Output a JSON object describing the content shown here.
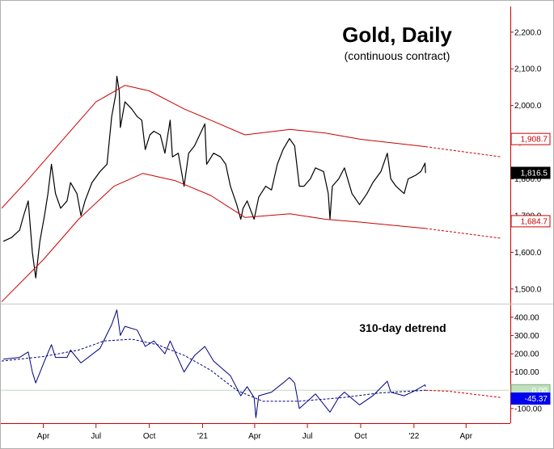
{
  "chart_data": [
    {
      "type": "line",
      "title": "Gold, Daily",
      "subtitle": "(continuous contract)",
      "x_tick_labels": [
        "Apr",
        "Jul",
        "Oct",
        "'21",
        "Apr",
        "Jul",
        "Oct",
        "'22",
        "Apr"
      ],
      "x_tick_dates": [
        "2020-04-01",
        "2020-07-01",
        "2020-10-01",
        "2021-01-01",
        "2021-04-01",
        "2021-07-01",
        "2021-10-01",
        "2022-01-01",
        "2022-04-01"
      ],
      "x_range": [
        "2020-01-20",
        "2022-06-15"
      ],
      "y_axis_position": "right",
      "ylim": [
        1460,
        2270
      ],
      "y_ticks": [
        1500,
        1600,
        1700,
        1800,
        1900,
        2000,
        2100,
        2200
      ],
      "y_tick_labels": [
        "1,500.0",
        "1,600.0",
        "1,700.0",
        "1,800.0",
        "1,900.0",
        "2,000.0",
        "2,100.0",
        "2,200.0"
      ],
      "series": [
        {
          "role": "price",
          "color": "#000000",
          "points": [
            [
              "2020-01-23",
              1630
            ],
            [
              "2020-02-06",
              1640
            ],
            [
              "2020-02-20",
              1660
            ],
            [
              "2020-02-27",
              1700
            ],
            [
              "2020-03-06",
              1740
            ],
            [
              "2020-03-13",
              1600
            ],
            [
              "2020-03-19",
              1530
            ],
            [
              "2020-03-26",
              1630
            ],
            [
              "2020-04-03",
              1700
            ],
            [
              "2020-04-09",
              1760
            ],
            [
              "2020-04-15",
              1840
            ],
            [
              "2020-04-22",
              1760
            ],
            [
              "2020-05-01",
              1720
            ],
            [
              "2020-05-12",
              1740
            ],
            [
              "2020-05-18",
              1790
            ],
            [
              "2020-05-29",
              1760
            ],
            [
              "2020-06-05",
              1700
            ],
            [
              "2020-06-12",
              1740
            ],
            [
              "2020-06-24",
              1790
            ],
            [
              "2020-07-08",
              1820
            ],
            [
              "2020-07-20",
              1840
            ],
            [
              "2020-07-28",
              1970
            ],
            [
              "2020-08-04",
              2030
            ],
            [
              "2020-08-06",
              2080
            ],
            [
              "2020-08-10",
              2040
            ],
            [
              "2020-08-12",
              1940
            ],
            [
              "2020-08-20",
              2010
            ],
            [
              "2020-09-01",
              1990
            ],
            [
              "2020-09-10",
              1970
            ],
            [
              "2020-09-18",
              1960
            ],
            [
              "2020-09-24",
              1880
            ],
            [
              "2020-10-02",
              1920
            ],
            [
              "2020-10-09",
              1930
            ],
            [
              "2020-10-20",
              1920
            ],
            [
              "2020-10-28",
              1870
            ],
            [
              "2020-11-06",
              1960
            ],
            [
              "2020-11-10",
              1860
            ],
            [
              "2020-11-20",
              1870
            ],
            [
              "2020-11-30",
              1780
            ],
            [
              "2020-12-08",
              1870
            ],
            [
              "2020-12-18",
              1890
            ],
            [
              "2021-01-05",
              1950
            ],
            [
              "2021-01-08",
              1840
            ],
            [
              "2021-01-20",
              1870
            ],
            [
              "2021-02-01",
              1860
            ],
            [
              "2021-02-10",
              1840
            ],
            [
              "2021-02-18",
              1780
            ],
            [
              "2021-03-01",
              1730
            ],
            [
              "2021-03-08",
              1690
            ],
            [
              "2021-03-12",
              1720
            ],
            [
              "2021-03-19",
              1740
            ],
            [
              "2021-03-31",
              1690
            ],
            [
              "2021-04-08",
              1750
            ],
            [
              "2021-04-20",
              1780
            ],
            [
              "2021-04-30",
              1770
            ],
            [
              "2021-05-10",
              1840
            ],
            [
              "2021-05-20",
              1880
            ],
            [
              "2021-05-31",
              1910
            ],
            [
              "2021-06-09",
              1890
            ],
            [
              "2021-06-17",
              1780
            ],
            [
              "2021-06-25",
              1780
            ],
            [
              "2021-07-06",
              1800
            ],
            [
              "2021-07-15",
              1830
            ],
            [
              "2021-07-29",
              1820
            ],
            [
              "2021-08-06",
              1760
            ],
            [
              "2021-08-09",
              1690
            ],
            [
              "2021-08-13",
              1780
            ],
            [
              "2021-08-24",
              1800
            ],
            [
              "2021-09-03",
              1830
            ],
            [
              "2021-09-16",
              1760
            ],
            [
              "2021-09-29",
              1730
            ],
            [
              "2021-10-12",
              1760
            ],
            [
              "2021-10-22",
              1790
            ],
            [
              "2021-11-05",
              1820
            ],
            [
              "2021-11-16",
              1870
            ],
            [
              "2021-11-22",
              1800
            ],
            [
              "2021-12-01",
              1780
            ],
            [
              "2021-12-15",
              1760
            ],
            [
              "2021-12-22",
              1800
            ],
            [
              "2022-01-04",
              1810
            ],
            [
              "2022-01-13",
              1820
            ],
            [
              "2022-01-20",
              1843
            ],
            [
              "2022-01-21",
              1816
            ]
          ]
        },
        {
          "role": "upper channel",
          "color": "#cc0000",
          "points": [
            [
              "2020-01-20",
              1720
            ],
            [
              "2020-03-01",
              1790
            ],
            [
              "2020-05-01",
              1900
            ],
            [
              "2020-07-01",
              2010
            ],
            [
              "2020-08-20",
              2055
            ],
            [
              "2020-10-01",
              2040
            ],
            [
              "2020-12-01",
              1990
            ],
            [
              "2021-01-15",
              1960
            ],
            [
              "2021-03-15",
              1920
            ],
            [
              "2021-06-01",
              1935
            ],
            [
              "2021-08-01",
              1925
            ],
            [
              "2021-10-01",
              1908
            ],
            [
              "2022-01-21",
              1888
            ]
          ],
          "projection": [
            [
              "2022-01-21",
              1888
            ],
            [
              "2022-06-01",
              1860
            ]
          ]
        },
        {
          "role": "lower channel",
          "color": "#cc0000",
          "points": [
            [
              "2020-01-20",
              1465
            ],
            [
              "2020-04-01",
              1580
            ],
            [
              "2020-06-01",
              1690
            ],
            [
              "2020-08-01",
              1780
            ],
            [
              "2020-09-20",
              1815
            ],
            [
              "2020-11-15",
              1795
            ],
            [
              "2021-01-15",
              1755
            ],
            [
              "2021-03-15",
              1695
            ],
            [
              "2021-06-01",
              1705
            ],
            [
              "2021-08-01",
              1690
            ],
            [
              "2021-10-01",
              1682
            ],
            [
              "2022-01-21",
              1665
            ]
          ],
          "projection": [
            [
              "2022-01-21",
              1665
            ],
            [
              "2022-06-01",
              1638
            ]
          ]
        }
      ],
      "flags": [
        {
          "value": "1,908.7",
          "background": "#ffffff",
          "border": "#cc0000",
          "text_color": "#cc0000",
          "y": 1908.7
        },
        {
          "value": "1,816.5",
          "background": "#000000",
          "border": "#000000",
          "text_color": "#ffffff",
          "y": 1816.5
        },
        {
          "value": "1,684.7",
          "background": "#ffffff",
          "border": "#cc0000",
          "text_color": "#cc0000",
          "y": 1684.7
        }
      ]
    },
    {
      "type": "line",
      "title": "310-day detrend",
      "y_axis_position": "right",
      "ylim": [
        -180,
        470
      ],
      "y_ticks": [
        400,
        300,
        200,
        100,
        -100
      ],
      "y_tick_labels": [
        "400.00",
        "300.00",
        "200.00",
        "100.00",
        "-100.00"
      ],
      "series": [
        {
          "role": "detrend",
          "color": "#000080",
          "points": [
            [
              "2020-01-23",
              170
            ],
            [
              "2020-02-20",
              180
            ],
            [
              "2020-03-06",
              210
            ],
            [
              "2020-03-13",
              100
            ],
            [
              "2020-03-19",
              40
            ],
            [
              "2020-04-03",
              160
            ],
            [
              "2020-04-15",
              250
            ],
            [
              "2020-04-22",
              180
            ],
            [
              "2020-05-12",
              180
            ],
            [
              "2020-05-18",
              220
            ],
            [
              "2020-06-05",
              150
            ],
            [
              "2020-07-08",
              230
            ],
            [
              "2020-07-28",
              360
            ],
            [
              "2020-08-06",
              440
            ],
            [
              "2020-08-12",
              300
            ],
            [
              "2020-08-20",
              350
            ],
            [
              "2020-09-10",
              330
            ],
            [
              "2020-09-24",
              240
            ],
            [
              "2020-10-09",
              270
            ],
            [
              "2020-10-28",
              200
            ],
            [
              "2020-11-06",
              270
            ],
            [
              "2020-11-30",
              100
            ],
            [
              "2020-12-18",
              190
            ],
            [
              "2021-01-05",
              240
            ],
            [
              "2021-01-20",
              160
            ],
            [
              "2021-02-18",
              80
            ],
            [
              "2021-03-08",
              -30
            ],
            [
              "2021-03-19",
              20
            ],
            [
              "2021-03-31",
              -40
            ],
            [
              "2021-04-03",
              -150
            ],
            [
              "2021-04-08",
              -30
            ],
            [
              "2021-04-30",
              -10
            ],
            [
              "2021-05-20",
              40
            ],
            [
              "2021-05-31",
              70
            ],
            [
              "2021-06-09",
              40
            ],
            [
              "2021-06-17",
              -100
            ],
            [
              "2021-07-15",
              -20
            ],
            [
              "2021-08-09",
              -120
            ],
            [
              "2021-08-24",
              -40
            ],
            [
              "2021-09-03",
              -10
            ],
            [
              "2021-09-29",
              -80
            ],
            [
              "2021-10-22",
              -30
            ],
            [
              "2021-11-16",
              50
            ],
            [
              "2021-11-22",
              -10
            ],
            [
              "2021-12-15",
              -30
            ],
            [
              "2022-01-04",
              0
            ],
            [
              "2022-01-20",
              30
            ],
            [
              "2022-01-21",
              20
            ]
          ]
        },
        {
          "role": "smoothed",
          "color": "#000080",
          "dashed": true,
          "points": [
            [
              "2020-01-20",
              160
            ],
            [
              "2020-04-01",
              185
            ],
            [
              "2020-06-01",
              220
            ],
            [
              "2020-07-15",
              270
            ],
            [
              "2020-09-01",
              280
            ],
            [
              "2020-10-15",
              250
            ],
            [
              "2020-12-01",
              190
            ],
            [
              "2021-01-15",
              110
            ],
            [
              "2021-03-01",
              0
            ],
            [
              "2021-04-15",
              -60
            ],
            [
              "2021-06-15",
              -60
            ],
            [
              "2021-09-01",
              -40
            ],
            [
              "2021-11-01",
              -15
            ],
            [
              "2022-01-21",
              0
            ]
          ]
        },
        {
          "role": "projection",
          "color": "#cc0000",
          "dashed": true,
          "points": [
            [
              "2022-01-21",
              0
            ],
            [
              "2022-03-01",
              -5
            ],
            [
              "2022-06-01",
              -40
            ]
          ]
        }
      ],
      "zero_line": true,
      "flags": [
        {
          "value": "0.00",
          "background": "#c0e0c0",
          "border": "#80b080",
          "text_color": "#ffffff",
          "y": 0
        },
        {
          "value": "-45.37",
          "background": "#0000ee",
          "border": "#0000ee",
          "text_color": "#ffffff",
          "y": -45.37
        }
      ]
    }
  ]
}
